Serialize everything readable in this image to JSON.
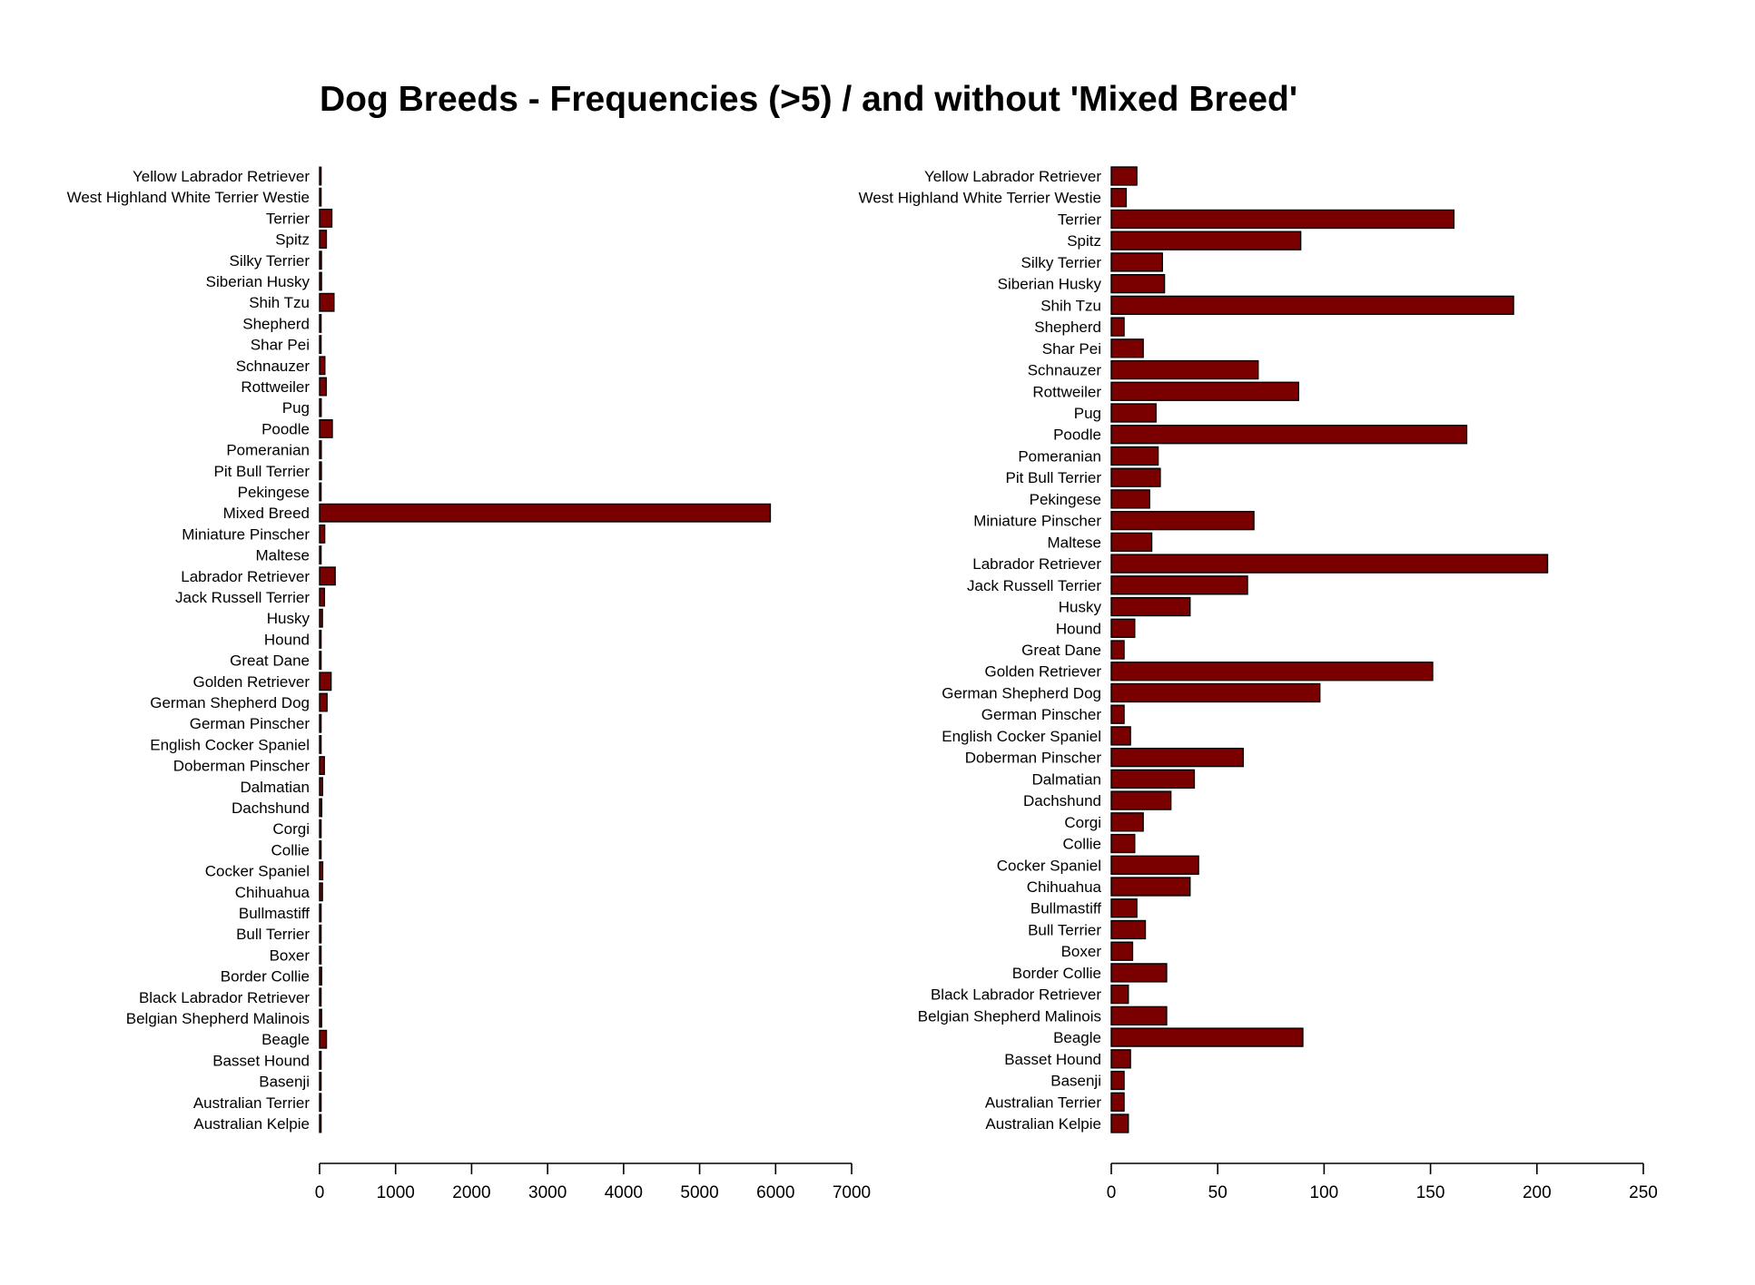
{
  "chart_data": [
    {
      "type": "bar",
      "orientation": "horizontal",
      "title": "Dog Breeds - Frequencies (>5) / and without 'Mixed Breed'",
      "categories": [
        "Australian Kelpie",
        "Australian Terrier",
        "Basenji",
        "Basset Hound",
        "Beagle",
        "Belgian Shepherd Malinois",
        "Black Labrador Retriever",
        "Border Collie",
        "Boxer",
        "Bull Terrier",
        "Bullmastiff",
        "Chihuahua",
        "Cocker Spaniel",
        "Collie",
        "Corgi",
        "Dachshund",
        "Dalmatian",
        "Doberman Pinscher",
        "English Cocker Spaniel",
        "German Pinscher",
        "German Shepherd Dog",
        "Golden Retriever",
        "Great Dane",
        "Hound",
        "Husky",
        "Jack Russell Terrier",
        "Labrador Retriever",
        "Maltese",
        "Miniature Pinscher",
        "Mixed Breed",
        "Pekingese",
        "Pit Bull Terrier",
        "Pomeranian",
        "Poodle",
        "Pug",
        "Rottweiler",
        "Schnauzer",
        "Shar Pei",
        "Shepherd",
        "Shih Tzu",
        "Siberian Husky",
        "Silky Terrier",
        "Spitz",
        "Terrier",
        "West Highland White Terrier Westie",
        "Yellow Labrador Retriever"
      ],
      "values": [
        8,
        6,
        6,
        9,
        90,
        26,
        8,
        26,
        10,
        16,
        12,
        37,
        41,
        11,
        15,
        28,
        39,
        62,
        9,
        6,
        98,
        151,
        6,
        11,
        37,
        64,
        205,
        19,
        67,
        5930,
        18,
        23,
        22,
        167,
        21,
        88,
        69,
        15,
        6,
        189,
        25,
        24,
        89,
        161,
        7,
        12
      ],
      "xlim": [
        0,
        7000
      ],
      "xticks": [
        0,
        1000,
        2000,
        3000,
        4000,
        5000,
        6000,
        7000
      ],
      "bar_color": "#7a0000",
      "edge_color": "#000000"
    },
    {
      "type": "bar",
      "orientation": "horizontal",
      "categories": [
        "Australian Kelpie",
        "Australian Terrier",
        "Basenji",
        "Basset Hound",
        "Beagle",
        "Belgian Shepherd Malinois",
        "Black Labrador Retriever",
        "Border Collie",
        "Boxer",
        "Bull Terrier",
        "Bullmastiff",
        "Chihuahua",
        "Cocker Spaniel",
        "Collie",
        "Corgi",
        "Dachshund",
        "Dalmatian",
        "Doberman Pinscher",
        "English Cocker Spaniel",
        "German Pinscher",
        "German Shepherd Dog",
        "Golden Retriever",
        "Great Dane",
        "Hound",
        "Husky",
        "Jack Russell Terrier",
        "Labrador Retriever",
        "Maltese",
        "Miniature Pinscher",
        "Pekingese",
        "Pit Bull Terrier",
        "Pomeranian",
        "Poodle",
        "Pug",
        "Rottweiler",
        "Schnauzer",
        "Shar Pei",
        "Shepherd",
        "Shih Tzu",
        "Siberian Husky",
        "Silky Terrier",
        "Spitz",
        "Terrier",
        "West Highland White Terrier Westie",
        "Yellow Labrador Retriever"
      ],
      "values": [
        8,
        6,
        6,
        9,
        90,
        26,
        8,
        26,
        10,
        16,
        12,
        37,
        41,
        11,
        15,
        28,
        39,
        62,
        9,
        6,
        98,
        151,
        6,
        11,
        37,
        64,
        205,
        19,
        67,
        18,
        23,
        22,
        167,
        21,
        88,
        69,
        15,
        6,
        189,
        25,
        24,
        89,
        161,
        7,
        12
      ],
      "xlim": [
        0,
        250
      ],
      "xticks": [
        0,
        50,
        100,
        150,
        200,
        250
      ],
      "bar_color": "#7a0000",
      "edge_color": "#000000"
    }
  ]
}
